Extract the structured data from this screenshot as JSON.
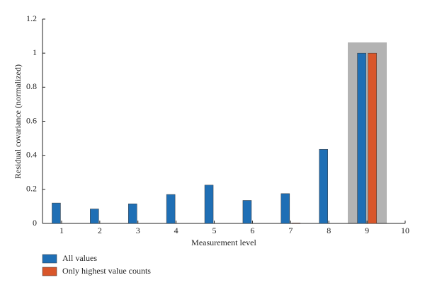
{
  "chart_data": {
    "type": "bar",
    "x_label": "Measurement level",
    "y_label": "Residual covariance (normalized)",
    "x": [
      1,
      2,
      3,
      4,
      5,
      6,
      7,
      8,
      9
    ],
    "series": [
      {
        "name": "All values",
        "color": "#1f6fb5",
        "values": [
          0.12,
          0.085,
          0.115,
          0.17,
          0.225,
          0.135,
          0.175,
          0.435,
          1.0
        ]
      },
      {
        "name": "Only highest value counts",
        "color": "#d9562a",
        "values": [
          0,
          0,
          0,
          0,
          0,
          0,
          0.003,
          0,
          1.0
        ]
      }
    ],
    "xlim": [
      0.5,
      10
    ],
    "xticks": [
      1,
      2,
      3,
      4,
      5,
      6,
      7,
      8,
      9,
      10
    ],
    "ylim": [
      0,
      1.2
    ],
    "yticks": [
      0,
      0.2,
      0.4,
      0.6,
      0.8,
      1,
      1.2
    ]
  }
}
